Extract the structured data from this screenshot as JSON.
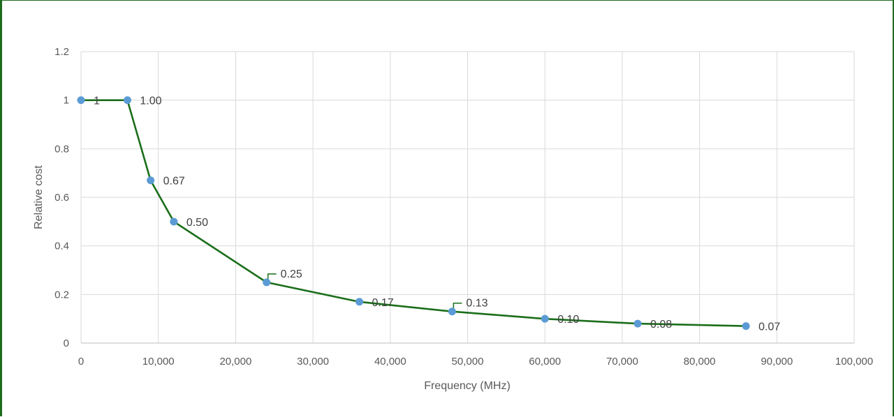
{
  "chart_data": {
    "type": "line",
    "title": "",
    "xlabel": "Frequency (MHz)",
    "ylabel": "Relative cost",
    "xlim": [
      0,
      100000
    ],
    "ylim": [
      0,
      1.2
    ],
    "x_ticks": [
      0,
      10000,
      20000,
      30000,
      40000,
      50000,
      60000,
      70000,
      80000,
      90000,
      100000
    ],
    "x_tick_labels": [
      "0",
      "10,000",
      "20,000",
      "30,000",
      "40,000",
      "50,000",
      "60,000",
      "70,000",
      "80,000",
      "90,000",
      "100,000"
    ],
    "y_ticks": [
      0,
      0.2,
      0.4,
      0.6,
      0.8,
      1,
      1.2
    ],
    "y_tick_labels": [
      "0",
      "0.2",
      "0.4",
      "0.6",
      "0.8",
      "1",
      "1.2"
    ],
    "grid": true,
    "line_color": "#1a6e1a",
    "marker_color": "#5b9bd5",
    "series": [
      {
        "x": [
          0,
          6000,
          9000,
          12000,
          24000,
          36000,
          48000,
          60000,
          72000,
          86000
        ],
        "y": [
          1,
          1.0,
          0.67,
          0.5,
          0.25,
          0.17,
          0.13,
          0.1,
          0.08,
          0.07
        ],
        "labels": [
          "1",
          "1.00",
          "0.67",
          "0.50",
          "0.25",
          "0.17",
          "0.13",
          "0.10",
          "0.08",
          "0.07"
        ]
      }
    ]
  }
}
